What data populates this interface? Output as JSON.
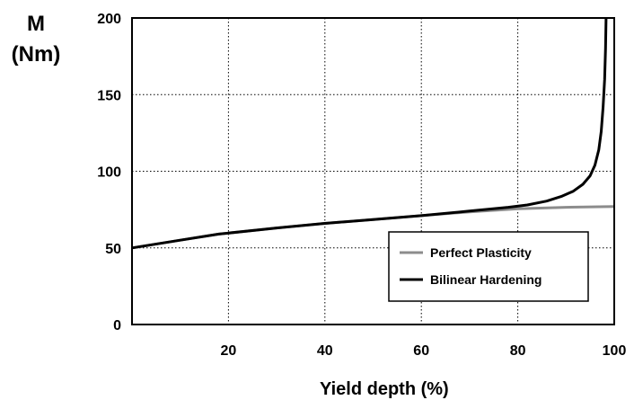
{
  "chart_data": {
    "type": "line",
    "ylabel_line1": "M",
    "ylabel_line2": "(Nm)",
    "xlabel": "Yield depth (%)",
    "xlim": [
      0,
      100
    ],
    "ylim": [
      0,
      200
    ],
    "xticks": [
      20,
      40,
      60,
      80,
      100
    ],
    "yticks": [
      0,
      50,
      100,
      150,
      200
    ],
    "grid": true,
    "grid_style": "dotted",
    "legend_position": "bottom-right",
    "series": [
      {
        "name": "Perfect Plasticity",
        "color": "#8c8c8c",
        "x": [
          0,
          10,
          18,
          30,
          40,
          50,
          60,
          70,
          80,
          90,
          100
        ],
        "y": [
          50,
          55,
          59,
          63,
          66,
          68.5,
          71,
          73.5,
          75.5,
          76.5,
          77
        ]
      },
      {
        "name": "Bilinear Hardening",
        "color": "#000000",
        "x": [
          0,
          10,
          18,
          30,
          40,
          50,
          60,
          70,
          78,
          82,
          86,
          89,
          91.5,
          93.5,
          95,
          96,
          96.8,
          97.3,
          97.7,
          98,
          98.2,
          98.3
        ],
        "y": [
          50,
          55,
          59,
          63,
          66,
          68.5,
          71,
          74,
          76.5,
          78,
          80.5,
          83.5,
          87,
          91.5,
          97,
          104,
          114,
          126,
          142,
          160,
          180,
          200
        ]
      }
    ]
  }
}
